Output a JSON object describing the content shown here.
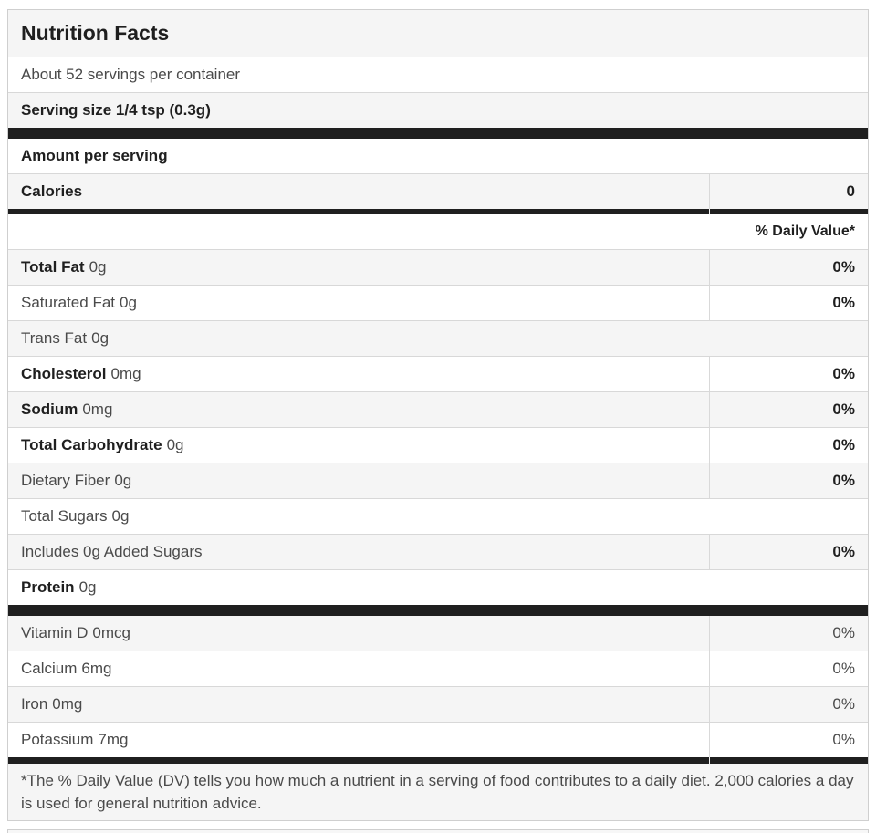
{
  "label": {
    "title": "Nutrition Facts",
    "servings_per_container": "About 52 servings per container",
    "serving_size": "Serving size 1/4 tsp (0.3g)",
    "amount_per_serving": "Amount per serving",
    "calories": {
      "name": "Calories",
      "value": "0"
    },
    "daily_value_header": "% Daily Value*",
    "nutrients": [
      {
        "name": "Total Fat",
        "amount": "0g",
        "dv": "0%"
      },
      {
        "name": "Saturated Fat",
        "amount": "0g",
        "dv": "0%"
      },
      {
        "name": "Trans Fat",
        "amount": "0g",
        "dv": ""
      },
      {
        "name": "Cholesterol",
        "amount": "0mg",
        "dv": "0%"
      },
      {
        "name": "Sodium",
        "amount": "0mg",
        "dv": "0%"
      },
      {
        "name": "Total Carbohydrate",
        "amount": "0g",
        "dv": "0%"
      },
      {
        "name": "Dietary Fiber",
        "amount": "0g",
        "dv": "0%"
      },
      {
        "name": "Total Sugars",
        "amount": "0g",
        "dv": ""
      },
      {
        "name": "Includes 0g Added Sugars",
        "amount": "",
        "dv": "0%"
      },
      {
        "name": "Protein",
        "amount": "0g",
        "dv": ""
      }
    ],
    "vitamins": [
      {
        "name": "Vitamin D",
        "amount": "0mcg",
        "dv": "0%"
      },
      {
        "name": "Calcium",
        "amount": "6mg",
        "dv": "0%"
      },
      {
        "name": "Iron",
        "amount": "0mg",
        "dv": "0%"
      },
      {
        "name": "Potassium",
        "amount": "7mg",
        "dv": "0%"
      }
    ],
    "footnote": "*The % Daily Value (DV) tells you how much a nutrient in a serving of food contributes to a daily diet. 2,000 calories a day is used for general nutrition advice."
  },
  "colors": {
    "stripe_gray": "#f5f5f5",
    "bar_black": "#1f1f1f",
    "border_gray": "#d8d8d8",
    "text_bold": "#1f1f1f",
    "text_regular": "#4a4a4a"
  }
}
